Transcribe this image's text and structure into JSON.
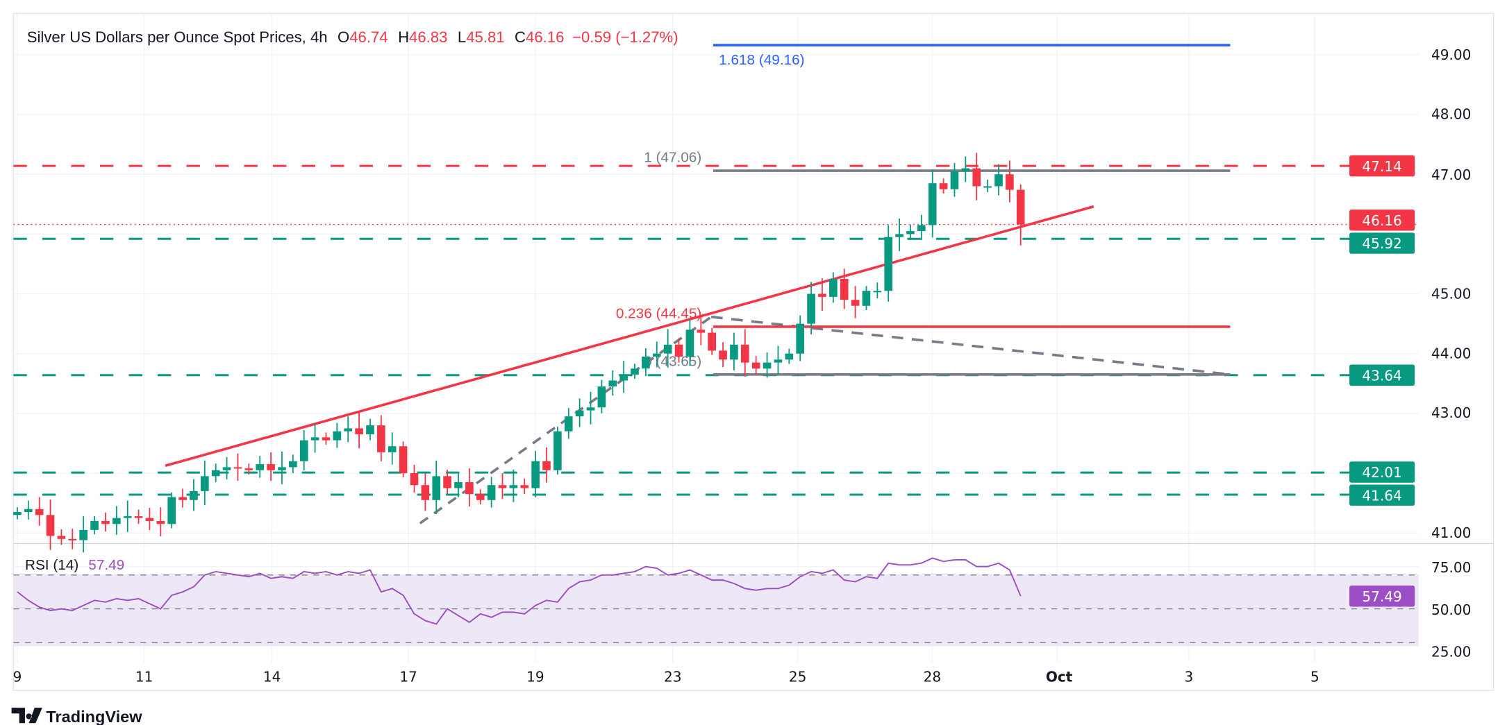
{
  "header": {
    "symbol_title": "Silver US Dollars per Ounce Spot Prices, 4h",
    "open_label": "O",
    "open": "46.74",
    "high_label": "H",
    "high": "46.83",
    "low_label": "L",
    "low": "45.81",
    "close_label": "C",
    "close": "46.16",
    "change": "−0.59 (−1.27%)"
  },
  "colors": {
    "up": "#089981",
    "down": "#f23645",
    "fib_ext": "#2962ff",
    "neutral": "#787b86",
    "rsi": "#9c4fc4",
    "rsi_band": "#ede7f6"
  },
  "chart_data": {
    "type": "candlestick",
    "timeframe": "4h",
    "y_axis_ticks": [
      "49.00",
      "48.00",
      "47.00",
      "45.00",
      "44.00",
      "43.00",
      "41.00"
    ],
    "ylim": [
      40.85,
      49.7
    ],
    "x_tick_labels": [
      "9",
      "11",
      "14",
      "17",
      "19",
      "23",
      "25",
      "28",
      "Oct",
      "3",
      "5"
    ],
    "closes": [
      41.35,
      41.4,
      41.3,
      40.95,
      40.9,
      40.88,
      41.05,
      41.2,
      41.15,
      41.25,
      41.28,
      41.25,
      41.2,
      41.15,
      41.6,
      41.55,
      41.7,
      41.95,
      42.05,
      42.1,
      42.08,
      42.05,
      42.15,
      42.05,
      42.1,
      42.2,
      42.55,
      42.6,
      42.55,
      42.7,
      42.75,
      42.65,
      42.8,
      42.35,
      42.45,
      42.0,
      41.8,
      41.55,
      41.95,
      41.75,
      41.85,
      41.65,
      41.55,
      41.8,
      41.75,
      41.8,
      41.75,
      42.2,
      42.05,
      42.7,
      42.95,
      43.05,
      43.1,
      43.45,
      43.55,
      43.65,
      43.75,
      43.95,
      44.0,
      44.15,
      43.95,
      44.4,
      44.35,
      44.05,
      43.9,
      44.15,
      43.85,
      43.75,
      43.85,
      43.9,
      44.0,
      44.5,
      45.0,
      44.95,
      45.25,
      44.9,
      44.8,
      45.05,
      45.05,
      45.95,
      46.0,
      46.05,
      46.15,
      46.85,
      46.75,
      47.05,
      47.1,
      46.8,
      46.8,
      47.0,
      46.74,
      46.16
    ],
    "last_candle": {
      "open": 46.74,
      "high": 46.83,
      "low": 45.81,
      "close": 46.16
    },
    "levels": [
      {
        "value": 47.14,
        "label": "47.14",
        "color": "#f23645",
        "style": "dashed"
      },
      {
        "value": 45.92,
        "label": "45.92",
        "color": "#089981",
        "style": "dashed"
      },
      {
        "value": 43.64,
        "label": "43.64",
        "color": "#089981",
        "style": "dashed"
      },
      {
        "value": 42.01,
        "label": "42.01",
        "color": "#089981",
        "style": "dashed"
      },
      {
        "value": 41.64,
        "label": "41.64",
        "color": "#089981",
        "style": "dashed"
      }
    ],
    "last_price": {
      "value": 46.16,
      "label": "46.16"
    },
    "fibonacci": [
      {
        "value": 49.16,
        "label": "1.618 (49.16)",
        "color": "#2962ff"
      },
      {
        "value": 47.06,
        "label": "1 (47.06)",
        "color": "#787b86"
      },
      {
        "value": 44.45,
        "label": "0.236 (44.45)",
        "color": "#f23645"
      },
      {
        "value": 43.65,
        "label": "0 (43.65)",
        "color": "#787b86"
      }
    ],
    "rsi": {
      "title": "RSI (14)",
      "value": "57.49",
      "ticks": [
        "75.00",
        "50.00",
        "25.00"
      ],
      "band": [
        30,
        70
      ],
      "values": [
        60,
        55,
        51,
        49,
        50,
        49,
        52,
        55,
        54,
        56,
        55,
        56,
        53,
        50,
        58,
        60,
        63,
        70,
        72,
        71,
        70,
        69,
        71,
        68,
        69,
        68,
        72,
        71,
        72,
        70,
        72,
        71,
        73,
        60,
        62,
        58,
        47,
        43,
        41,
        50,
        46,
        42,
        47,
        45,
        48,
        48,
        47,
        52,
        55,
        54,
        62,
        66,
        67,
        70,
        70,
        71,
        72,
        75,
        74,
        70,
        71,
        73,
        70,
        67,
        67,
        65,
        62,
        61,
        62,
        62,
        64,
        69,
        72,
        71,
        73,
        67,
        66,
        69,
        68,
        77,
        76,
        76,
        77,
        80,
        78,
        79,
        79,
        75,
        75,
        77,
        73,
        57.49
      ]
    }
  },
  "footer": {
    "brand": "TradingView"
  }
}
